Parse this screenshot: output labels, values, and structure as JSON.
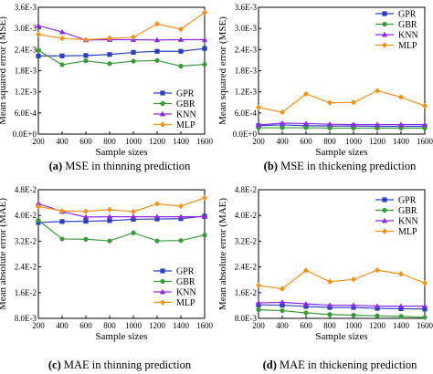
{
  "chart_data": [
    {
      "type": "line",
      "panel": "(a)",
      "caption": "MSE in thinning prediction",
      "xlabel": "Sample sizes",
      "ylabel": "Mean squared error (MSE)",
      "x": [
        200,
        400,
        600,
        800,
        1000,
        1200,
        1400,
        1600
      ],
      "xticks": [
        "200",
        "400",
        "600",
        "800",
        "1000",
        "1200",
        "1400",
        "1600"
      ],
      "xlim": [
        200,
        1600
      ],
      "ylim": [
        0,
        0.0036
      ],
      "yticks": [
        0,
        0.0006,
        0.0012,
        0.0018,
        0.0024,
        0.003,
        0.0036
      ],
      "ytick_labels": [
        "0.0E+0",
        "6.0E-4",
        "1.2E-3",
        "1.8E-3",
        "2.4E-3",
        "3.0E-3",
        "3.6E-3"
      ],
      "legend_position": "center-right",
      "series": [
        {
          "name": "GPR",
          "color": "#2b3fbf",
          "marker": "square",
          "values": [
            0.00222,
            0.00222,
            0.00223,
            0.00226,
            0.00232,
            0.00235,
            0.00235,
            0.00243
          ]
        },
        {
          "name": "GBR",
          "color": "#3a9a3a",
          "marker": "circle",
          "values": [
            0.00238,
            0.00197,
            0.00208,
            0.002,
            0.00207,
            0.00209,
            0.00193,
            0.00198
          ]
        },
        {
          "name": "KNN",
          "color": "#8a2be2",
          "marker": "triangle",
          "values": [
            0.00308,
            0.0029,
            0.00267,
            0.00268,
            0.00268,
            0.00267,
            0.00268,
            0.00268
          ]
        },
        {
          "name": "MLP",
          "color": "#f0921e",
          "marker": "diamond",
          "values": [
            0.00283,
            0.00272,
            0.00268,
            0.00272,
            0.00275,
            0.00313,
            0.00298,
            0.00345
          ]
        }
      ]
    },
    {
      "type": "line",
      "panel": "(b)",
      "caption": "MSE in thickening prediction",
      "xlabel": "Sample sizes",
      "ylabel": "Mean squared error (MSE)",
      "x": [
        200,
        400,
        600,
        800,
        1000,
        1200,
        1400,
        1600
      ],
      "xticks": [
        "200",
        "400",
        "600",
        "800",
        "1000",
        "1200",
        "1400",
        "1600"
      ],
      "xlim": [
        200,
        1600
      ],
      "ylim": [
        0,
        0.0036
      ],
      "yticks": [
        0,
        0.0006,
        0.0012,
        0.0018,
        0.0024,
        0.003,
        0.0036
      ],
      "ytick_labels": [
        "0.0E+0",
        "6.0E-4",
        "1.2E-3",
        "1.8E-3",
        "2.4E-3",
        "3.0E-3",
        "3.6E-3"
      ],
      "legend_position": "top-right",
      "series": [
        {
          "name": "GPR",
          "color": "#2b3fbf",
          "marker": "square",
          "values": [
            0.00024,
            0.00026,
            0.00024,
            0.00023,
            0.00023,
            0.00022,
            0.00022,
            0.00022
          ]
        },
        {
          "name": "GBR",
          "color": "#3a9a3a",
          "marker": "circle",
          "values": [
            0.00018,
            0.00018,
            0.00018,
            0.00017,
            0.00017,
            0.00017,
            0.00017,
            0.00017
          ]
        },
        {
          "name": "KNN",
          "color": "#8a2be2",
          "marker": "triangle",
          "values": [
            0.00026,
            0.00031,
            0.0003,
            0.00028,
            0.00027,
            0.00027,
            0.00027,
            0.00027
          ]
        },
        {
          "name": "MLP",
          "color": "#f0921e",
          "marker": "diamond",
          "values": [
            0.00076,
            0.00062,
            0.00114,
            0.00089,
            0.0009,
            0.00123,
            0.00105,
            0.0008
          ]
        }
      ]
    },
    {
      "type": "line",
      "panel": "(c)",
      "caption": "MAE in thinning prediction",
      "xlabel": "Sample sizes",
      "ylabel": "Mean absolute error (MAE)",
      "x": [
        200,
        400,
        600,
        800,
        1000,
        1200,
        1400,
        1600
      ],
      "xticks": [
        "200",
        "400",
        "600",
        "800",
        "1000",
        "1200",
        "1400",
        "1600"
      ],
      "xlim": [
        200,
        1600
      ],
      "ylim": [
        0.008,
        0.048
      ],
      "yticks": [
        0.008,
        0.016,
        0.024,
        0.032,
        0.04,
        0.048
      ],
      "ytick_labels": [
        "8.0E-3",
        "1.6E-2",
        "2.4E-2",
        "3.2E-2",
        "4.0E-2",
        "4.8E-2"
      ],
      "legend_position": "bottom-right",
      "series": [
        {
          "name": "GPR",
          "color": "#2b3fbf",
          "marker": "square",
          "values": [
            0.0378,
            0.0381,
            0.0382,
            0.0384,
            0.0388,
            0.0389,
            0.039,
            0.0398
          ]
        },
        {
          "name": "GBR",
          "color": "#3a9a3a",
          "marker": "circle",
          "values": [
            0.0385,
            0.0327,
            0.0326,
            0.0321,
            0.0346,
            0.0321,
            0.0322,
            0.0339
          ]
        },
        {
          "name": "KNN",
          "color": "#8a2be2",
          "marker": "triangle",
          "values": [
            0.0437,
            0.0412,
            0.0395,
            0.0396,
            0.0396,
            0.0396,
            0.0396,
            0.0396
          ]
        },
        {
          "name": "MLP",
          "color": "#f0921e",
          "marker": "diamond",
          "values": [
            0.0428,
            0.0414,
            0.0413,
            0.0418,
            0.0412,
            0.0436,
            0.0429,
            0.0455
          ]
        }
      ]
    },
    {
      "type": "line",
      "panel": "(d)",
      "caption": "MAE in thickening prediction",
      "xlabel": "Sample sizes",
      "ylabel": "Mean absolute error (MAE)",
      "x": [
        200,
        400,
        600,
        800,
        1000,
        1200,
        1400,
        1600
      ],
      "xticks": [
        "200",
        "400",
        "600",
        "800",
        "1000",
        "1200",
        "1400",
        "1600"
      ],
      "xlim": [
        200,
        1600
      ],
      "ylim": [
        0.008,
        0.048
      ],
      "yticks": [
        0.008,
        0.016,
        0.024,
        0.032,
        0.04,
        0.048
      ],
      "ytick_labels": [
        "8.0E-3",
        "1.6E-2",
        "2.4E-2",
        "3.2E-2",
        "4.0E-2",
        "4.8E-2"
      ],
      "legend_position": "top-right",
      "series": [
        {
          "name": "GPR",
          "color": "#2b3fbf",
          "marker": "square",
          "values": [
            0.0122,
            0.0121,
            0.0117,
            0.0114,
            0.0114,
            0.0111,
            0.011,
            0.0109
          ]
        },
        {
          "name": "GBR",
          "color": "#3a9a3a",
          "marker": "circle",
          "values": [
            0.0107,
            0.0104,
            0.0097,
            0.0092,
            0.009,
            0.0088,
            0.0086,
            0.0083
          ]
        },
        {
          "name": "KNN",
          "color": "#8a2be2",
          "marker": "triangle",
          "values": [
            0.0128,
            0.013,
            0.0125,
            0.0121,
            0.0121,
            0.0118,
            0.0118,
            0.0118
          ]
        },
        {
          "name": "MLP",
          "color": "#f0921e",
          "marker": "diamond",
          "values": [
            0.0182,
            0.0172,
            0.0229,
            0.0194,
            0.0201,
            0.023,
            0.0218,
            0.019
          ]
        }
      ]
    }
  ]
}
